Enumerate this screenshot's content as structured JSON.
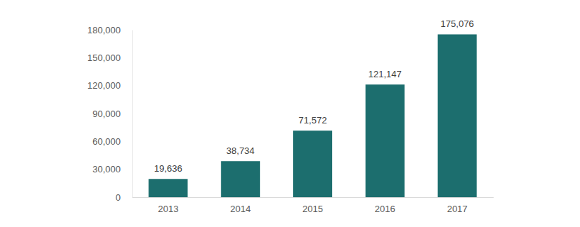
{
  "chart_data": {
    "type": "bar",
    "categories": [
      "2013",
      "2014",
      "2015",
      "2016",
      "2017"
    ],
    "values": [
      19636,
      38734,
      71572,
      121147,
      175076
    ],
    "value_labels": [
      "19,636",
      "38,734",
      "71,572",
      "121,147",
      "175,076"
    ],
    "data_labels": true,
    "color": "#1c6e6e",
    "ylim": [
      0,
      180000
    ],
    "yticks": [
      0,
      {
        "value": 30000,
        "label": "30,000"
      },
      {
        "value": 60000,
        "label": "60,000"
      },
      {
        "value": 90000,
        "label": "90,000"
      },
      {
        "value": 120000,
        "label": "120,000"
      },
      {
        "value": 150000,
        "label": "150,000"
      },
      {
        "value": 180000,
        "label": "180,000"
      }
    ],
    "grid": false
  }
}
